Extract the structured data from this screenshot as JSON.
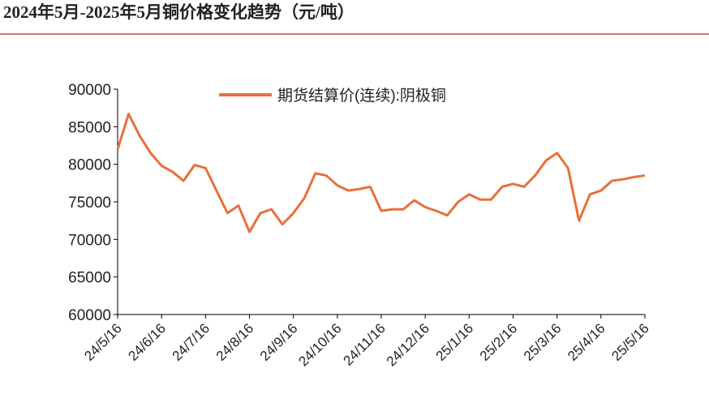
{
  "chart_data": {
    "type": "line",
    "title": "2024年5月-2025年5月铜价格变化趋势（元/吨）",
    "categories": [
      "24/5/16",
      null,
      null,
      null,
      "24/6/16",
      null,
      null,
      null,
      "24/7/16",
      null,
      null,
      null,
      "24/8/16",
      null,
      null,
      null,
      "24/9/16",
      null,
      null,
      null,
      "24/10/16",
      null,
      null,
      null,
      "24/11/16",
      null,
      null,
      null,
      "24/12/16",
      null,
      null,
      null,
      "25/1/16",
      null,
      null,
      null,
      "25/2/16",
      null,
      null,
      null,
      "25/3/16",
      null,
      null,
      null,
      "25/4/16",
      null,
      null,
      null,
      "25/5/16"
    ],
    "series": [
      {
        "name": "期货结算价(连续):阴极铜",
        "color": "#e8703a",
        "values": [
          82000,
          86700,
          83800,
          81500,
          79800,
          79000,
          77800,
          79900,
          79500,
          76500,
          73500,
          74500,
          71000,
          73500,
          74000,
          72000,
          73500,
          75500,
          78800,
          78500,
          77200,
          76500,
          76700,
          77000,
          73800,
          74000,
          74000,
          75200,
          74300,
          73800,
          73200,
          75000,
          76000,
          75300,
          75300,
          77000,
          77400,
          77000,
          78500,
          80500,
          81500,
          79500,
          72500,
          76000,
          76500,
          77800,
          78000,
          78300,
          78500
        ]
      }
    ],
    "ylim": [
      60000,
      90000
    ],
    "yticks": [
      60000,
      65000,
      70000,
      75000,
      80000,
      85000,
      90000
    ],
    "legend": "top"
  }
}
